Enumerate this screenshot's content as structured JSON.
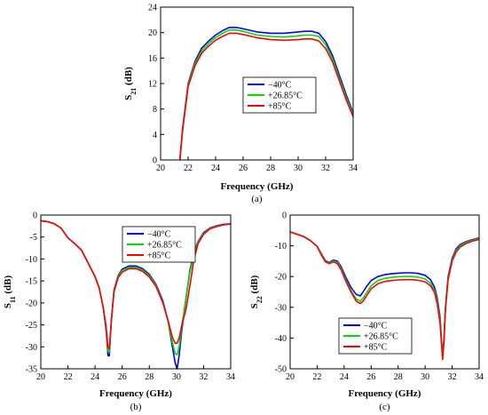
{
  "chart_data": [
    {
      "type": "line",
      "caption": "(a)",
      "xlabel": "Frequency (GHz)",
      "ylabel": "S21 (dB)",
      "xlim": [
        20,
        34
      ],
      "ylim": [
        0,
        24
      ],
      "xticks": [
        "20",
        "22",
        "24",
        "26",
        "28",
        "30",
        "32",
        "34"
      ],
      "yticks": [
        "0",
        "4",
        "8",
        "12",
        "16",
        "20",
        "24"
      ],
      "legend_position": "center-right",
      "series": [
        {
          "name": "−40°C",
          "color": "#0000ff",
          "x": [
            21.4,
            21.6,
            22.0,
            22.5,
            23.0,
            23.5,
            24.0,
            24.5,
            25.0,
            25.5,
            26.0,
            27.0,
            28.0,
            29.0,
            30.0,
            30.5,
            31.0,
            31.5,
            32.0,
            32.5,
            33.0,
            33.5,
            34.0
          ],
          "y": [
            0,
            5,
            12,
            15.5,
            17.6,
            18.7,
            19.6,
            20.3,
            20.8,
            20.8,
            20.6,
            20.1,
            19.9,
            19.9,
            20.1,
            20.2,
            20.2,
            19.9,
            18.6,
            16.4,
            13.3,
            10.2,
            7.4
          ]
        },
        {
          "name": "+26.85°C",
          "color": "#00dd00",
          "x": [
            21.4,
            21.6,
            22.0,
            22.5,
            23.0,
            23.5,
            24.0,
            24.5,
            25.0,
            25.5,
            26.0,
            27.0,
            28.0,
            29.0,
            30.0,
            30.5,
            31.0,
            31.5,
            32.0,
            32.5,
            33.0,
            33.5,
            34.0
          ],
          "y": [
            0,
            4.8,
            11.8,
            15.2,
            17.2,
            18.3,
            19.2,
            19.9,
            20.4,
            20.4,
            20.2,
            19.6,
            19.4,
            19.3,
            19.5,
            19.6,
            19.6,
            19.4,
            18.1,
            15.9,
            12.8,
            9.8,
            7.1
          ]
        },
        {
          "name": "+85°C",
          "color": "#ff0000",
          "x": [
            21.4,
            21.6,
            22.0,
            22.5,
            23.0,
            23.5,
            24.0,
            24.5,
            25.0,
            25.5,
            26.0,
            27.0,
            28.0,
            29.0,
            30.0,
            30.5,
            31.0,
            31.5,
            32.0,
            32.5,
            33.0,
            33.5,
            34.0
          ],
          "y": [
            0,
            4.6,
            11.5,
            14.8,
            16.8,
            17.9,
            18.8,
            19.4,
            19.9,
            19.9,
            19.7,
            19.2,
            18.9,
            18.8,
            18.9,
            19.0,
            19.0,
            18.7,
            17.5,
            15.4,
            12.4,
            9.4,
            6.8
          ]
        }
      ]
    },
    {
      "type": "line",
      "caption": "(b)",
      "xlabel": "Frequency (GHz)",
      "ylabel": "S11 (dB)",
      "xlim": [
        20,
        34
      ],
      "ylim": [
        -35,
        0
      ],
      "xticks": [
        "20",
        "22",
        "24",
        "26",
        "28",
        "30",
        "32",
        "34"
      ],
      "yticks": [
        "0",
        "-5",
        "-10",
        "-15",
        "-20",
        "-25",
        "-30",
        "-35"
      ],
      "legend_position": "top-center",
      "series": [
        {
          "name": "−40°C",
          "color": "#0000ff",
          "x": [
            20,
            20.5,
            21,
            21.5,
            22,
            22.5,
            23,
            23.5,
            24,
            24.3,
            24.6,
            24.8,
            24.95,
            25.05,
            25.2,
            25.4,
            25.7,
            26,
            26.5,
            27,
            27.5,
            28,
            28.5,
            29,
            29.4,
            29.7,
            29.9,
            30.05,
            30.2,
            30.4,
            30.7,
            31,
            31.3,
            31.6,
            32,
            32.5,
            33,
            33.5,
            34
          ],
          "y": [
            -1.3,
            -1.5,
            -2,
            -3,
            -5.2,
            -6.5,
            -8,
            -11,
            -14,
            -16.5,
            -21,
            -26,
            -32,
            -32,
            -24,
            -17,
            -13.8,
            -12.3,
            -11.6,
            -11.6,
            -12.2,
            -13.5,
            -15.8,
            -19.5,
            -24.5,
            -30,
            -33.5,
            -35,
            -32,
            -26,
            -19,
            -12.5,
            -8.5,
            -6,
            -4,
            -2.9,
            -2.4,
            -2.1,
            -2
          ]
        },
        {
          "name": "+26.85°C",
          "color": "#00dd00",
          "x": [
            20,
            20.5,
            21,
            21.5,
            22,
            22.5,
            23,
            23.5,
            24,
            24.3,
            24.6,
            24.8,
            24.95,
            25.05,
            25.2,
            25.4,
            25.7,
            26,
            26.5,
            27,
            27.5,
            28,
            28.5,
            29,
            29.4,
            29.7,
            29.9,
            30.05,
            30.2,
            30.4,
            30.7,
            31,
            31.3,
            31.6,
            32,
            32.5,
            33,
            33.5,
            34
          ],
          "y": [
            -1.3,
            -1.5,
            -2,
            -3,
            -5.2,
            -6.5,
            -8,
            -11,
            -14,
            -16.5,
            -21,
            -25.5,
            -31,
            -31.2,
            -24,
            -17.2,
            -14,
            -12.6,
            -11.9,
            -11.9,
            -12.5,
            -13.8,
            -16,
            -19.8,
            -24.5,
            -29,
            -31.5,
            -31.8,
            -30,
            -25,
            -19,
            -13,
            -9,
            -6.2,
            -4.2,
            -3,
            -2.5,
            -2.2,
            -2
          ]
        },
        {
          "name": "+85°C",
          "color": "#ff0000",
          "x": [
            20,
            20.5,
            21,
            21.5,
            22,
            22.5,
            23,
            23.5,
            24,
            24.3,
            24.6,
            24.8,
            24.95,
            25.05,
            25.2,
            25.4,
            25.7,
            26,
            26.5,
            27,
            27.5,
            28,
            28.5,
            29,
            29.4,
            29.7,
            29.9,
            30.05,
            30.2,
            30.4,
            30.7,
            31,
            31.3,
            31.6,
            32,
            32.5,
            33,
            33.5,
            34
          ],
          "y": [
            -1.3,
            -1.5,
            -2,
            -3,
            -5.2,
            -6.5,
            -8,
            -11,
            -14,
            -16.5,
            -21,
            -25,
            -30,
            -30.5,
            -24,
            -17.5,
            -14.3,
            -13,
            -12.2,
            -12.2,
            -12.8,
            -14.1,
            -16.3,
            -20,
            -24.2,
            -27.8,
            -29.2,
            -29.2,
            -28,
            -25,
            -21.5,
            -16,
            -10,
            -6.5,
            -4.4,
            -3.1,
            -2.6,
            -2.2,
            -2
          ]
        }
      ]
    },
    {
      "type": "line",
      "caption": "(c)",
      "xlabel": "Frequency (GHz)",
      "ylabel": "S22 (dB)",
      "xlim": [
        20,
        34
      ],
      "ylim": [
        -50,
        0
      ],
      "xticks": [
        "20",
        "22",
        "24",
        "26",
        "28",
        "30",
        "32",
        "34"
      ],
      "yticks": [
        "0",
        "-10",
        "-20",
        "-30",
        "-40",
        "-50"
      ],
      "legend_position": "bottom-center",
      "series": [
        {
          "name": "−40°C",
          "color": "#0000ff",
          "x": [
            20,
            20.5,
            21,
            21.5,
            22,
            22.3,
            22.6,
            22.9,
            23.2,
            23.5,
            23.8,
            24.1,
            24.5,
            24.9,
            25.2,
            25.4,
            25.7,
            26,
            26.5,
            27,
            27.5,
            28,
            28.5,
            29,
            29.5,
            30,
            30.4,
            30.7,
            30.9,
            31.1,
            31.2,
            31.3,
            31.4,
            31.5,
            31.7,
            32,
            32.3,
            32.6,
            33,
            33.5,
            34
          ],
          "y": [
            -5.5,
            -6.2,
            -7,
            -8.3,
            -10.2,
            -12.5,
            -14.8,
            -15.4,
            -14.6,
            -15,
            -17,
            -20,
            -23.5,
            -25.8,
            -26.3,
            -25,
            -23,
            -21.3,
            -20,
            -19.4,
            -19.1,
            -18.9,
            -18.8,
            -18.8,
            -19,
            -19.6,
            -21,
            -23.5,
            -27,
            -33,
            -40,
            -46,
            -40,
            -30,
            -20,
            -14,
            -11,
            -9.6,
            -8.7,
            -8,
            -7.4
          ]
        },
        {
          "name": "+26.85°C",
          "color": "#00dd00",
          "x": [
            20,
            20.5,
            21,
            21.5,
            22,
            22.3,
            22.6,
            22.9,
            23.2,
            23.5,
            23.8,
            24.1,
            24.5,
            24.9,
            25.2,
            25.4,
            25.7,
            26,
            26.5,
            27,
            27.5,
            28,
            28.5,
            29,
            29.5,
            30,
            30.4,
            30.7,
            30.9,
            31.1,
            31.2,
            31.3,
            31.4,
            31.5,
            31.7,
            32,
            32.3,
            32.6,
            33,
            33.5,
            34
          ],
          "y": [
            -5.5,
            -6.2,
            -7,
            -8.3,
            -10.2,
            -12.7,
            -15,
            -15.6,
            -14.9,
            -15.4,
            -17.6,
            -20.8,
            -24.5,
            -27.3,
            -28,
            -27,
            -25,
            -23,
            -21.3,
            -20.6,
            -20.3,
            -20.1,
            -20,
            -20,
            -20.2,
            -20.8,
            -22.2,
            -24.5,
            -28,
            -34,
            -40.5,
            -46.5,
            -40,
            -30,
            -20.5,
            -14.5,
            -11.5,
            -10,
            -9,
            -8.2,
            -7.6
          ]
        },
        {
          "name": "+85°C",
          "color": "#ff0000",
          "x": [
            20,
            20.5,
            21,
            21.5,
            22,
            22.3,
            22.6,
            22.9,
            23.2,
            23.5,
            23.8,
            24.1,
            24.5,
            24.9,
            25.2,
            25.4,
            25.7,
            26,
            26.5,
            27,
            27.5,
            28,
            28.5,
            29,
            29.5,
            30,
            30.4,
            30.7,
            30.9,
            31.1,
            31.2,
            31.3,
            31.4,
            31.5,
            31.7,
            32,
            32.3,
            32.6,
            33,
            33.5,
            34
          ],
          "y": [
            -5.5,
            -6.2,
            -7,
            -8.3,
            -10.2,
            -12.9,
            -15.2,
            -15.8,
            -15.2,
            -15.8,
            -18,
            -21.3,
            -25,
            -28,
            -28.8,
            -28,
            -26,
            -24,
            -22.3,
            -21.6,
            -21.3,
            -21.1,
            -21,
            -21,
            -21.2,
            -21.7,
            -23,
            -25.2,
            -29,
            -35,
            -41,
            -47,
            -41,
            -31,
            -21,
            -15,
            -12,
            -10.4,
            -9.3,
            -8.5,
            -7.9
          ]
        }
      ]
    }
  ]
}
